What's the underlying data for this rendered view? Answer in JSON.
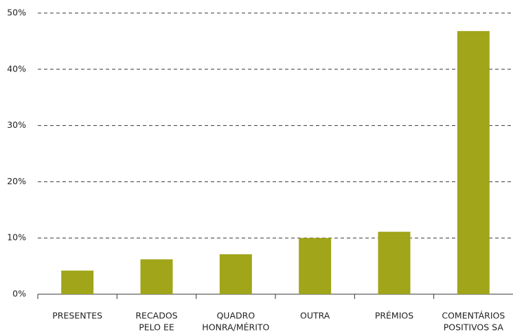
{
  "chart_data": {
    "type": "bar",
    "categories": [
      [
        "PRESENTES"
      ],
      [
        "RECADOS",
        "PELO EE"
      ],
      [
        "QUADRO",
        "HONRA/MÉRITO"
      ],
      [
        "OUTRA"
      ],
      [
        "PRÉMIOS"
      ],
      [
        "COMENTÁRIOS",
        "POSITIVOS SA"
      ]
    ],
    "values": [
      4.2,
      6.2,
      7.1,
      10,
      11.1,
      46.8
    ],
    "color": "#a0a519",
    "ylim": [
      0,
      50
    ],
    "yticks": [
      {
        "value": 0,
        "label": "0%"
      },
      {
        "value": 10,
        "label": "10%"
      },
      {
        "value": 20,
        "label": "20%"
      },
      {
        "value": 30,
        "label": "30%"
      },
      {
        "value": 40,
        "label": "40%"
      },
      {
        "value": 50,
        "label": "50%"
      }
    ],
    "grid": true
  }
}
